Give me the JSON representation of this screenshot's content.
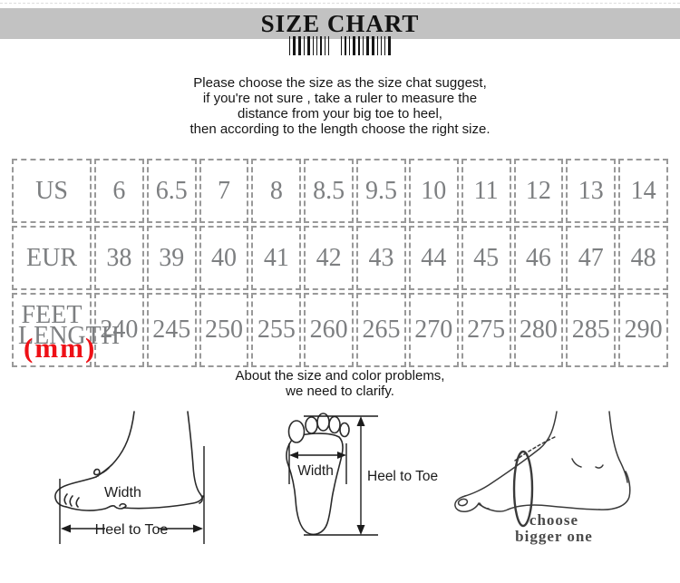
{
  "title": "SIZE CHART",
  "intro": {
    "line1": "Please choose the size as the size chat suggest,",
    "line2": "if you're not sure , take a ruler to measure the",
    "line3": "distance from your big toe to heel,",
    "line4": "then according to the length choose the right size."
  },
  "size_table": {
    "rows": [
      {
        "label": "US",
        "values": [
          "6",
          "6.5",
          "7",
          "8",
          "8.5",
          "9.5",
          "10",
          "11",
          "12",
          "13",
          "14"
        ]
      },
      {
        "label": "EUR",
        "values": [
          "38",
          "39",
          "40",
          "41",
          "42",
          "43",
          "44",
          "45",
          "46",
          "47",
          "48"
        ]
      },
      {
        "label": "FEET LENGTH",
        "unit": "(mm)",
        "values": [
          "240",
          "245",
          "250",
          "255",
          "260",
          "265",
          "270",
          "275",
          "280",
          "285",
          "290"
        ]
      }
    ]
  },
  "clarify": {
    "line1": "About the size and color problems,",
    "line2": "we need to clarify."
  },
  "diagrams": {
    "side_foot": {
      "width_label": "Width",
      "length_label": "Heel to Toe"
    },
    "sole_foot": {
      "width_label": "Width",
      "length_label": "Heel to Toe"
    },
    "tape_foot": {
      "note_line1": "choose",
      "note_line2": "bigger one"
    }
  },
  "colors": {
    "band_gray": "#c2c2c2",
    "accent_red": "#ee1016",
    "table_text": "#7d7f81",
    "table_border": "#999999"
  },
  "icons": {
    "barcode": "barcode-icon",
    "barcode_bars": [
      1,
      3,
      3,
      1,
      3,
      1,
      1,
      2,
      1,
      1,
      0,
      1,
      2,
      1,
      3,
      2,
      1,
      3,
      3,
      1,
      1,
      1,
      3
    ]
  }
}
